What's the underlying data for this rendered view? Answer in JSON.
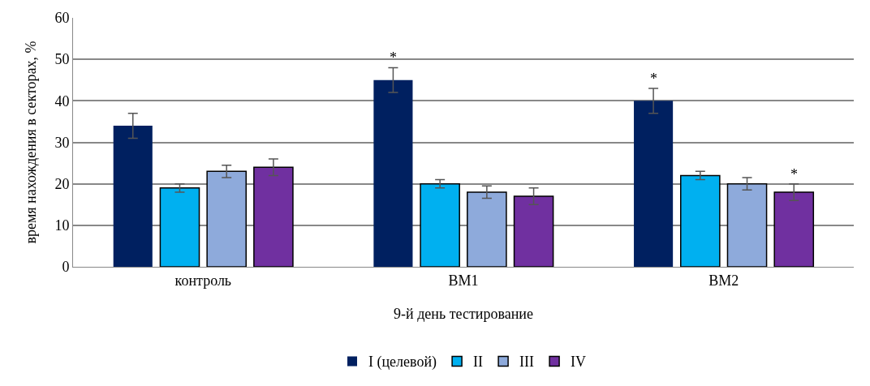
{
  "chart_data": {
    "type": "bar",
    "xlabel": "9-й день тестирование",
    "ylabel": "время нахождения в секторах, %",
    "categories": [
      "контроль",
      "ВМ1",
      "ВМ2"
    ],
    "series": [
      {
        "name": "I (целевой)",
        "color": "#002060",
        "values": [
          34,
          45,
          40
        ],
        "errors": [
          3,
          3,
          3
        ],
        "value_labels": [
          null,
          "*",
          "*"
        ]
      },
      {
        "name": "II",
        "color": "#00b0f0",
        "values": [
          19,
          20,
          22
        ],
        "errors": [
          1,
          1,
          1
        ]
      },
      {
        "name": "III",
        "color": "#8eaadb",
        "values": [
          23,
          18,
          20
        ],
        "errors": [
          1.5,
          1.5,
          1.5
        ]
      },
      {
        "name": "IV",
        "color": "#7030a0",
        "values": [
          24,
          17,
          18
        ],
        "errors": [
          2,
          2,
          2
        ],
        "value_labels": [
          null,
          null,
          "*"
        ]
      }
    ],
    "ylim": [
      0,
      60
    ],
    "yticks": [
      0,
      10,
      20,
      30,
      40,
      50,
      60
    ],
    "grid": "y",
    "legend": "bottom"
  }
}
